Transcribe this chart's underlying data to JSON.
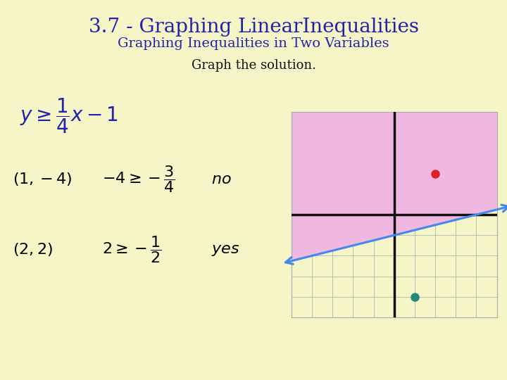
{
  "bg_color": "#f5f5c8",
  "title": "3.7 - Graphing LinearInequalities",
  "subtitle": "Graphing Inequalities in Two Variables",
  "instruction": "Graph the solution.",
  "title_color": "#2222aa",
  "subtitle_color": "#2222aa",
  "instruction_color": "#111111",
  "title_fontsize": 20,
  "subtitle_fontsize": 14,
  "instruction_fontsize": 13,
  "graph_bg_color": "#f5f5c8",
  "grid_color": "#bbbbbb",
  "shaded_color": "#f0b8e0",
  "axis_color": "#111111",
  "line_color": "#4488ee",
  "slope": 0.25,
  "intercept": -1,
  "xlim": [
    -5,
    5
  ],
  "ylim": [
    -5,
    5
  ],
  "red_dot": [
    2,
    2
  ],
  "teal_dot": [
    1,
    -4
  ],
  "red_dot_color": "#dd2222",
  "teal_dot_color": "#228877"
}
